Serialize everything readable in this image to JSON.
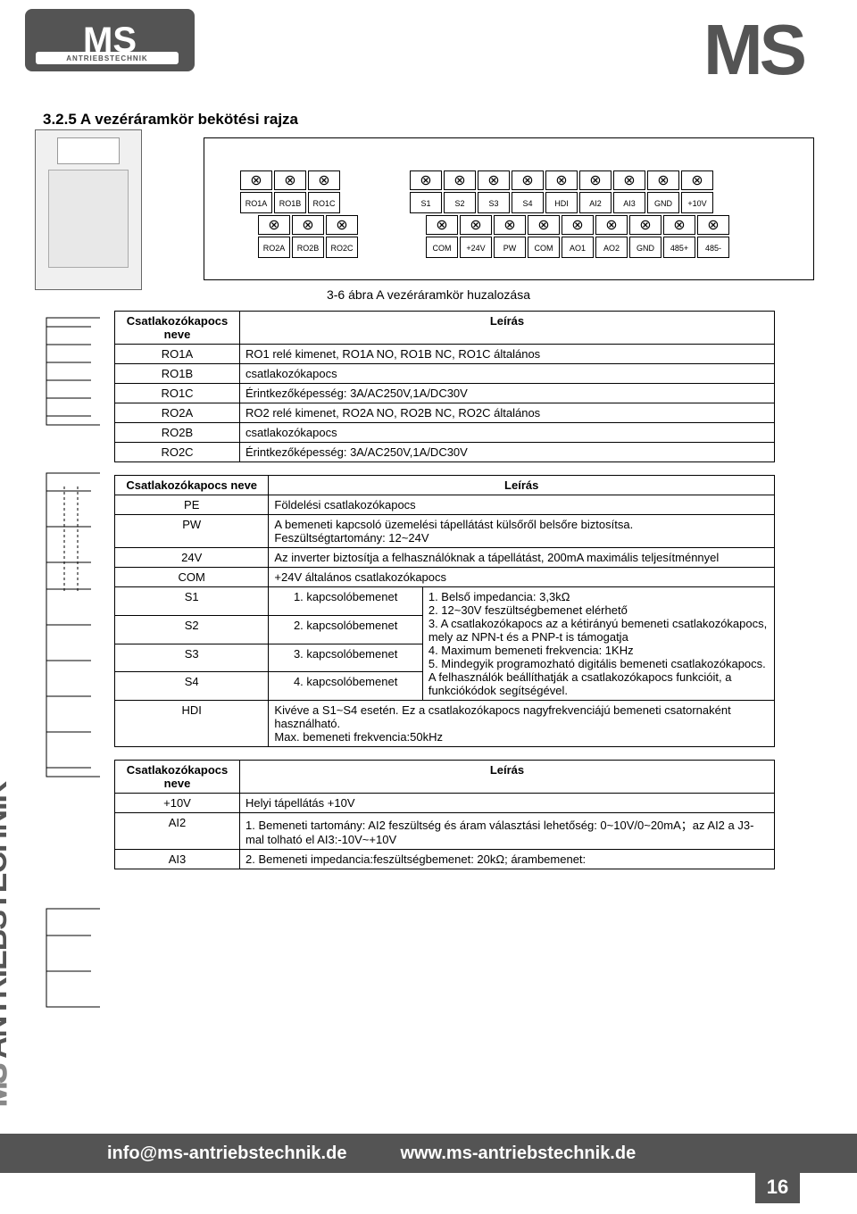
{
  "header": {
    "logo_left": "MS",
    "logo_left_sub": "ANTRIEBSTECHNIK",
    "logo_right": "MS"
  },
  "section_title": "3.2.5 A vezéráramkör bekötési rajza",
  "terminals_top": [
    "RO1A",
    "RO1B",
    "RO1C"
  ],
  "terminals_bot": [
    "RO2A",
    "RO2B",
    "RO2C"
  ],
  "terminals_right_top": [
    "S1",
    "S2",
    "S3",
    "S4",
    "HDI",
    "AI2",
    "AI3",
    "GND",
    "+10V"
  ],
  "terminals_right_bot": [
    "COM",
    "+24V",
    "PW",
    "COM",
    "AO1",
    "AO2",
    "GND",
    "485+",
    "485-"
  ],
  "caption": "3-6 ábra A vezéráramkör huzalozása",
  "table1": {
    "header_name": "Csatlakozókapocs neve",
    "header_desc": "Leírás",
    "rows": [
      {
        "name": "RO1A",
        "desc": "RO1 relé kimenet, RO1A NO, RO1B NC, RO1C általános"
      },
      {
        "name": "RO1B",
        "desc": "csatlakozókapocs"
      },
      {
        "name": "RO1C",
        "desc": "Érintkezőképesség: 3A/AC250V,1A/DC30V"
      },
      {
        "name": "RO2A",
        "desc": "RO2 relé kimenet, RO2A NO, RO2B NC, RO2C általános"
      },
      {
        "name": "RO2B",
        "desc": "csatlakozókapocs"
      },
      {
        "name": "RO2C",
        "desc": "Érintkezőképesség: 3A/AC250V,1A/DC30V"
      }
    ]
  },
  "table2": {
    "header_name": "Csatlakozókapocs neve",
    "header_desc": "Leírás",
    "rows_simple": [
      {
        "name": "PE",
        "desc": "Földelési csatlakozókapocs"
      },
      {
        "name": "PW",
        "desc": "A bemeneti kapcsoló üzemelési tápellátást külsőről belsőre biztosítsa.\nFeszültségtartomány: 12~24V"
      },
      {
        "name": "24V",
        "desc": "Az inverter biztosítja a felhasználóknak a tápellátást, 200mA maximális teljesítménnyel"
      },
      {
        "name": "COM",
        "desc": "+24V általános csatlakozókapocs"
      }
    ],
    "s_rows": [
      {
        "name": "S1",
        "left": "1. kapcsolóbemenet"
      },
      {
        "name": "S2",
        "left": "2. kapcsolóbemenet"
      },
      {
        "name": "S3",
        "left": "3. kapcsolóbemenet"
      },
      {
        "name": "S4",
        "left": "4. kapcsolóbemenet"
      }
    ],
    "s_right": "1. Belső impedancia: 3,3kΩ\n2. 12~30V feszültségbemenet elérhető\n3. A csatlakozókapocs az a kétirányú bemeneti csatlakozókapocs, mely az NPN-t és a PNP-t is támogatja\n4. Maximum bemeneti frekvencia: 1KHz\n5. Mindegyik programozható digitális bemeneti csatlakozókapocs. A felhasználók beállíthatják a csatlakozókapocs funkcióit, a funkciókódok segítségével.",
    "hdi_row": {
      "name": "HDI",
      "desc": "Kivéve a S1~S4 esetén. Ez a csatlakozókapocs nagyfrekvenciájú bemeneti csatornaként használható.\nMax. bemeneti frekvencia:50kHz"
    }
  },
  "table3": {
    "header_name": "Csatlakozókapocs neve",
    "header_desc": "Leírás",
    "rows": [
      {
        "name": "+10V",
        "desc": "Helyi tápellátás +10V"
      },
      {
        "name": "AI2",
        "desc": "1. Bemeneti tartomány: AI2 feszültség és áram választási lehetőség: 0~10V/0~20mA；az AI2 a J3-mal tolható el AI3:-10V~+10V"
      },
      {
        "name": "AI3",
        "desc": "2. Bemeneti impedancia:feszültségbemenet: 20kΩ; árambemenet:"
      }
    ]
  },
  "sidebar": "ANTRIEBSTECHNIK",
  "sidebar_prefix": "MS",
  "footer": {
    "email": "info@ms-antriebstechnik.de",
    "url": "www.ms-antriebstechnik.de",
    "page": "16"
  }
}
